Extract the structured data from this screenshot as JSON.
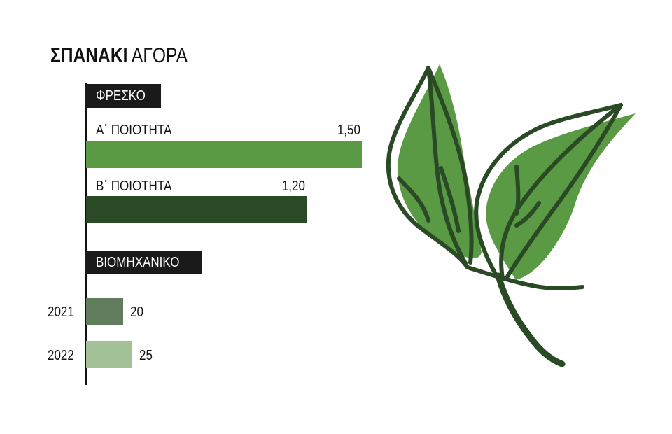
{
  "title": {
    "bold": "ΣΠΑΝΑΚΙ",
    "rest": " ΑΓΟΡΑ"
  },
  "chart_data": [
    {
      "type": "bar",
      "orientation": "horizontal",
      "section_label": "ΦΡΕΣΚΟ",
      "categories": [
        "Α΄ ΠΟΙΟΤΗΤΑ",
        "Β΄ ΠΟΙΟΤΗΤΑ"
      ],
      "values": [
        1.5,
        1.2
      ],
      "value_labels": [
        "1,50",
        "1,20"
      ],
      "colors": [
        "#5a9a45",
        "#2a4a25"
      ],
      "xlim": [
        0,
        1.5
      ]
    },
    {
      "type": "bar",
      "orientation": "horizontal",
      "section_label": "ΒΙΟΜΗΧΑΝΙΚΟ",
      "categories": [
        "2021",
        "2022"
      ],
      "values": [
        20,
        25
      ],
      "value_labels": [
        "20",
        "25"
      ],
      "colors": [
        "#627c5e",
        "#a3c196"
      ]
    }
  ],
  "colors": {
    "dark_green": "#2a4a25",
    "light_green": "#5a9a45",
    "tag_bg": "#1a1a1a"
  },
  "illustration": "spinach-leaves-icon"
}
